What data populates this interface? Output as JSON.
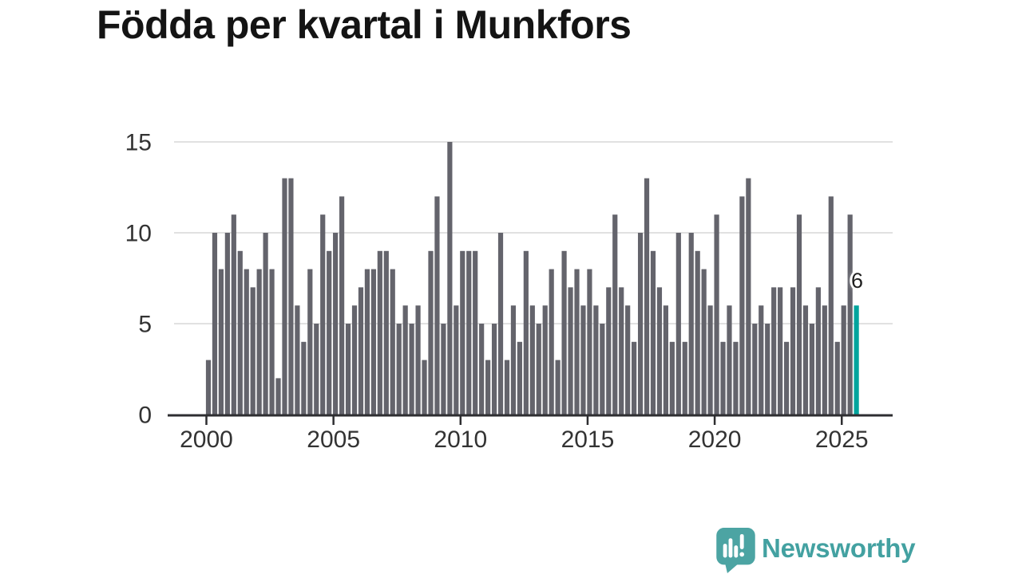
{
  "title": "Födda per kvartal i Munkfors",
  "branding": {
    "name": "Newsworthy"
  },
  "colors": {
    "bar": "#64646c",
    "highlight": "#00a49d",
    "grid": "#e1e1e1",
    "axis": "#2e2e31",
    "tick_text": "#333333",
    "title_text": "#141414",
    "label_text": "#1f1f1f",
    "brand": "#43a1a1"
  },
  "chart_data": {
    "type": "bar",
    "title": "Födda per kvartal i Munkfors",
    "xlabel": "",
    "ylabel": "",
    "ylim": [
      0,
      15
    ],
    "grid": "horizontal",
    "x_tick_labels": [
      "2000",
      "2005",
      "2010",
      "2015",
      "2020",
      "2025"
    ],
    "y_tick_labels": [
      "0",
      "5",
      "10",
      "15"
    ],
    "series": [
      {
        "name": "Födda per kvartal",
        "frequency": "quarterly",
        "start": "2000 Q1",
        "end": "2025 Q3",
        "values": [
          3,
          10,
          8,
          10,
          11,
          9,
          8,
          7,
          8,
          10,
          8,
          2,
          13,
          13,
          6,
          4,
          8,
          5,
          11,
          9,
          10,
          12,
          5,
          6,
          7,
          8,
          8,
          9,
          9,
          8,
          5,
          6,
          5,
          6,
          3,
          9,
          12,
          5,
          15,
          6,
          9,
          9,
          9,
          5,
          3,
          5,
          10,
          3,
          6,
          4,
          9,
          6,
          5,
          6,
          8,
          3,
          9,
          7,
          8,
          6,
          8,
          6,
          5,
          7,
          11,
          7,
          6,
          4,
          10,
          13,
          9,
          7,
          6,
          4,
          10,
          4,
          10,
          9,
          8,
          6,
          11,
          4,
          6,
          4,
          12,
          13,
          5,
          6,
          5,
          7,
          7,
          4,
          7,
          11,
          6,
          5,
          7,
          6,
          12,
          4,
          6,
          11,
          6
        ]
      }
    ],
    "highlight": {
      "index": 102,
      "label": "6",
      "quarter": "2025 Q3"
    },
    "legend": "none"
  }
}
